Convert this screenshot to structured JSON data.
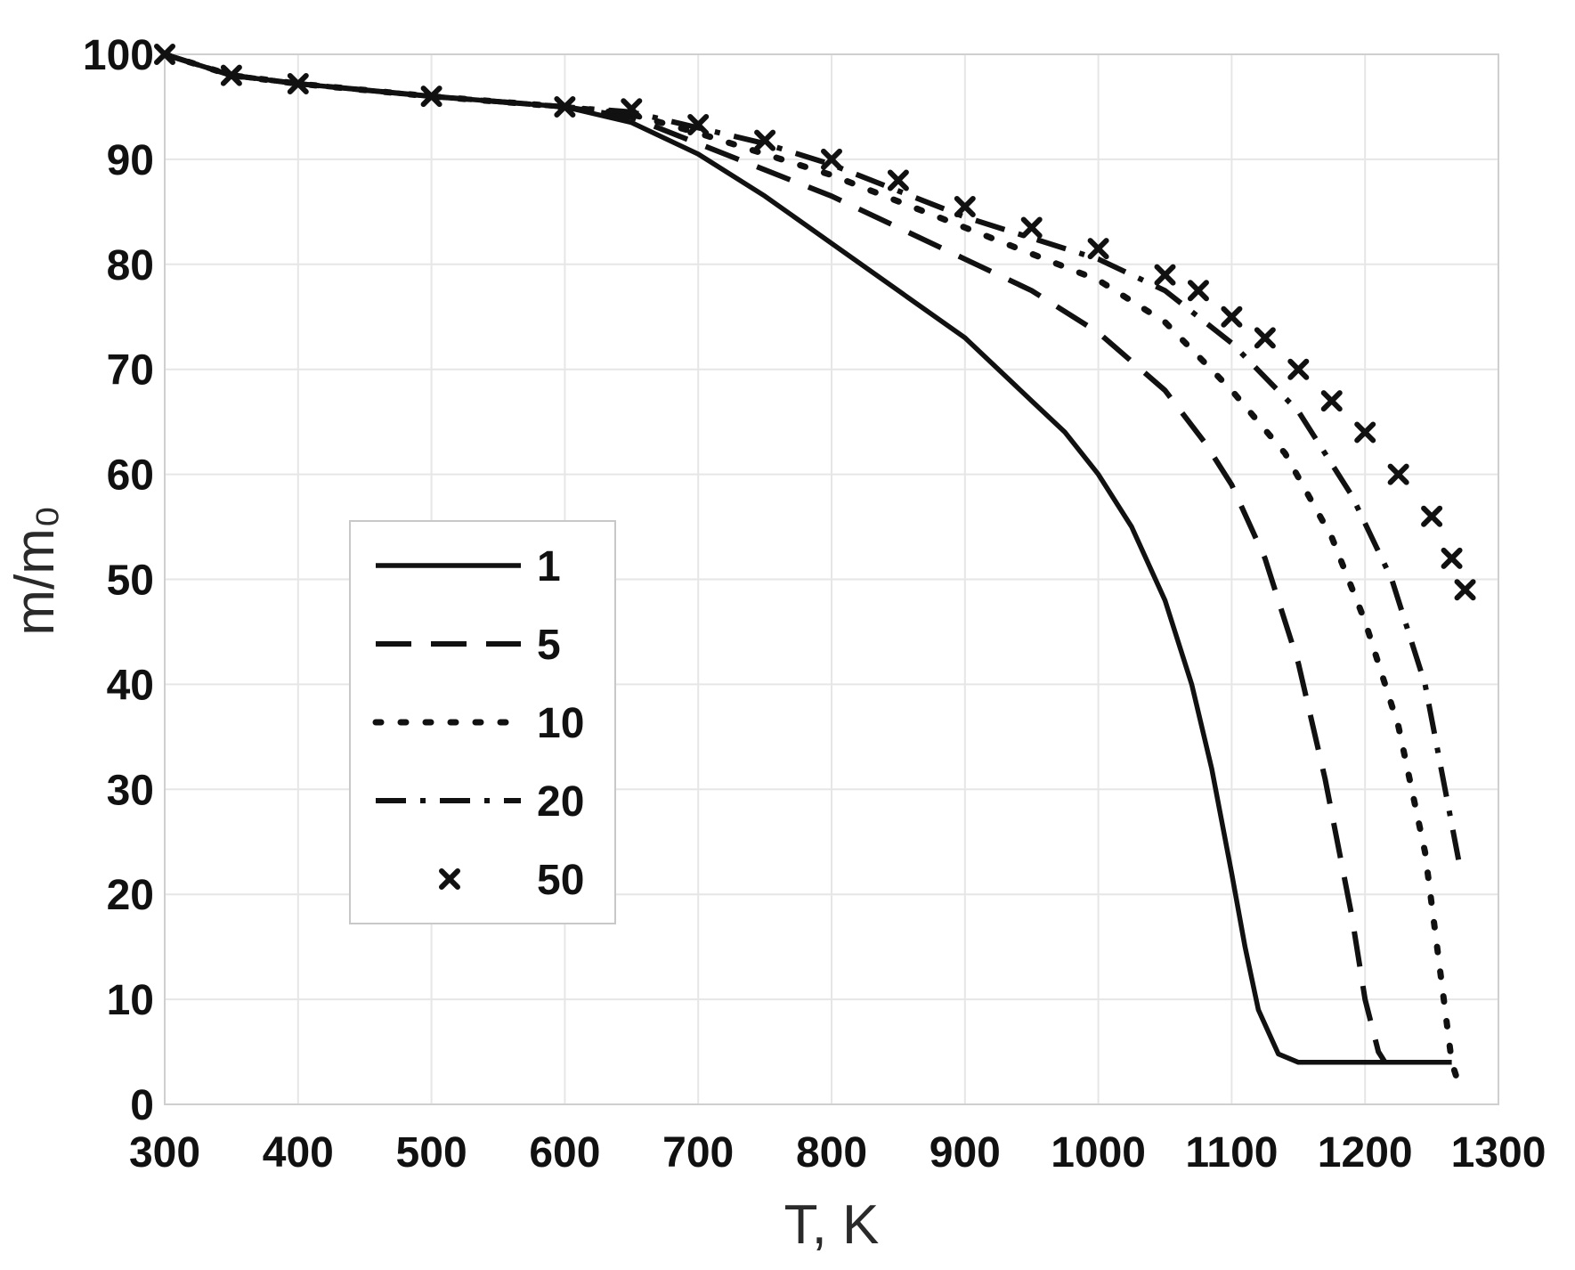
{
  "chart_data": {
    "type": "line",
    "title": "",
    "xlabel": "T, K",
    "ylabel": "m/m₀",
    "xlim": [
      300,
      1300
    ],
    "ylim": [
      0,
      100
    ],
    "xticks": [
      300,
      400,
      500,
      600,
      700,
      800,
      900,
      1000,
      1100,
      1200,
      1300
    ],
    "yticks": [
      0,
      10,
      20,
      30,
      40,
      50,
      60,
      70,
      80,
      90,
      100
    ],
    "grid": true,
    "legend_position": "center-left",
    "series": [
      {
        "name": "1",
        "style": "solid",
        "points": [
          [
            300,
            100
          ],
          [
            350,
            98
          ],
          [
            400,
            97.2
          ],
          [
            500,
            96
          ],
          [
            600,
            95
          ],
          [
            650,
            93.5
          ],
          [
            700,
            90.5
          ],
          [
            750,
            86.5
          ],
          [
            800,
            82
          ],
          [
            850,
            77.5
          ],
          [
            900,
            73
          ],
          [
            950,
            67
          ],
          [
            975,
            64
          ],
          [
            1000,
            60
          ],
          [
            1025,
            55
          ],
          [
            1050,
            48
          ],
          [
            1070,
            40
          ],
          [
            1085,
            32
          ],
          [
            1100,
            22
          ],
          [
            1110,
            15
          ],
          [
            1120,
            9
          ],
          [
            1135,
            4.8
          ],
          [
            1150,
            4
          ],
          [
            1200,
            4
          ],
          [
            1250,
            4
          ],
          [
            1265,
            4
          ]
        ]
      },
      {
        "name": "5",
        "style": "dashed",
        "points": [
          [
            300,
            100
          ],
          [
            350,
            98
          ],
          [
            400,
            97.2
          ],
          [
            500,
            96
          ],
          [
            600,
            95
          ],
          [
            650,
            94
          ],
          [
            700,
            91.5
          ],
          [
            750,
            89
          ],
          [
            800,
            86.5
          ],
          [
            850,
            83.5
          ],
          [
            900,
            80.5
          ],
          [
            950,
            77.5
          ],
          [
            1000,
            73.5
          ],
          [
            1050,
            68
          ],
          [
            1080,
            63
          ],
          [
            1100,
            59
          ],
          [
            1125,
            52
          ],
          [
            1150,
            42
          ],
          [
            1170,
            31
          ],
          [
            1190,
            18
          ],
          [
            1200,
            10
          ],
          [
            1210,
            5
          ],
          [
            1215,
            4
          ]
        ]
      },
      {
        "name": "10",
        "style": "dotted",
        "points": [
          [
            300,
            100
          ],
          [
            350,
            98
          ],
          [
            400,
            97.2
          ],
          [
            500,
            96
          ],
          [
            600,
            95
          ],
          [
            650,
            94.3
          ],
          [
            700,
            92.5
          ],
          [
            750,
            90.5
          ],
          [
            800,
            88.5
          ],
          [
            850,
            86
          ],
          [
            900,
            83.5
          ],
          [
            950,
            81
          ],
          [
            1000,
            78.5
          ],
          [
            1050,
            74.5
          ],
          [
            1100,
            68
          ],
          [
            1140,
            62
          ],
          [
            1175,
            54
          ],
          [
            1200,
            46
          ],
          [
            1225,
            36
          ],
          [
            1245,
            24
          ],
          [
            1255,
            14
          ],
          [
            1265,
            4
          ],
          [
            1270,
            2
          ]
        ]
      },
      {
        "name": "20",
        "style": "dash-dot",
        "points": [
          [
            300,
            100
          ],
          [
            350,
            98
          ],
          [
            400,
            97.2
          ],
          [
            500,
            96
          ],
          [
            600,
            95
          ],
          [
            650,
            94.5
          ],
          [
            700,
            93
          ],
          [
            750,
            91.5
          ],
          [
            800,
            89.5
          ],
          [
            850,
            87
          ],
          [
            900,
            84.5
          ],
          [
            950,
            82.5
          ],
          [
            1000,
            80.5
          ],
          [
            1050,
            77.5
          ],
          [
            1100,
            72.5
          ],
          [
            1150,
            66
          ],
          [
            1190,
            58
          ],
          [
            1220,
            50
          ],
          [
            1245,
            40
          ],
          [
            1260,
            30
          ],
          [
            1272,
            22
          ]
        ]
      },
      {
        "name": "50",
        "style": "x-markers",
        "points": [
          [
            300,
            100
          ],
          [
            350,
            98
          ],
          [
            400,
            97.2
          ],
          [
            500,
            96
          ],
          [
            600,
            95
          ],
          [
            650,
            94.8
          ],
          [
            700,
            93.3
          ],
          [
            750,
            91.8
          ],
          [
            800,
            90
          ],
          [
            850,
            88
          ],
          [
            900,
            85.5
          ],
          [
            950,
            83.5
          ],
          [
            1000,
            81.5
          ],
          [
            1050,
            79
          ],
          [
            1075,
            77.5
          ],
          [
            1100,
            75
          ],
          [
            1125,
            73
          ],
          [
            1150,
            70
          ],
          [
            1175,
            67
          ],
          [
            1200,
            64
          ],
          [
            1225,
            60
          ],
          [
            1250,
            56
          ],
          [
            1265,
            52
          ],
          [
            1275,
            49
          ]
        ]
      }
    ]
  }
}
